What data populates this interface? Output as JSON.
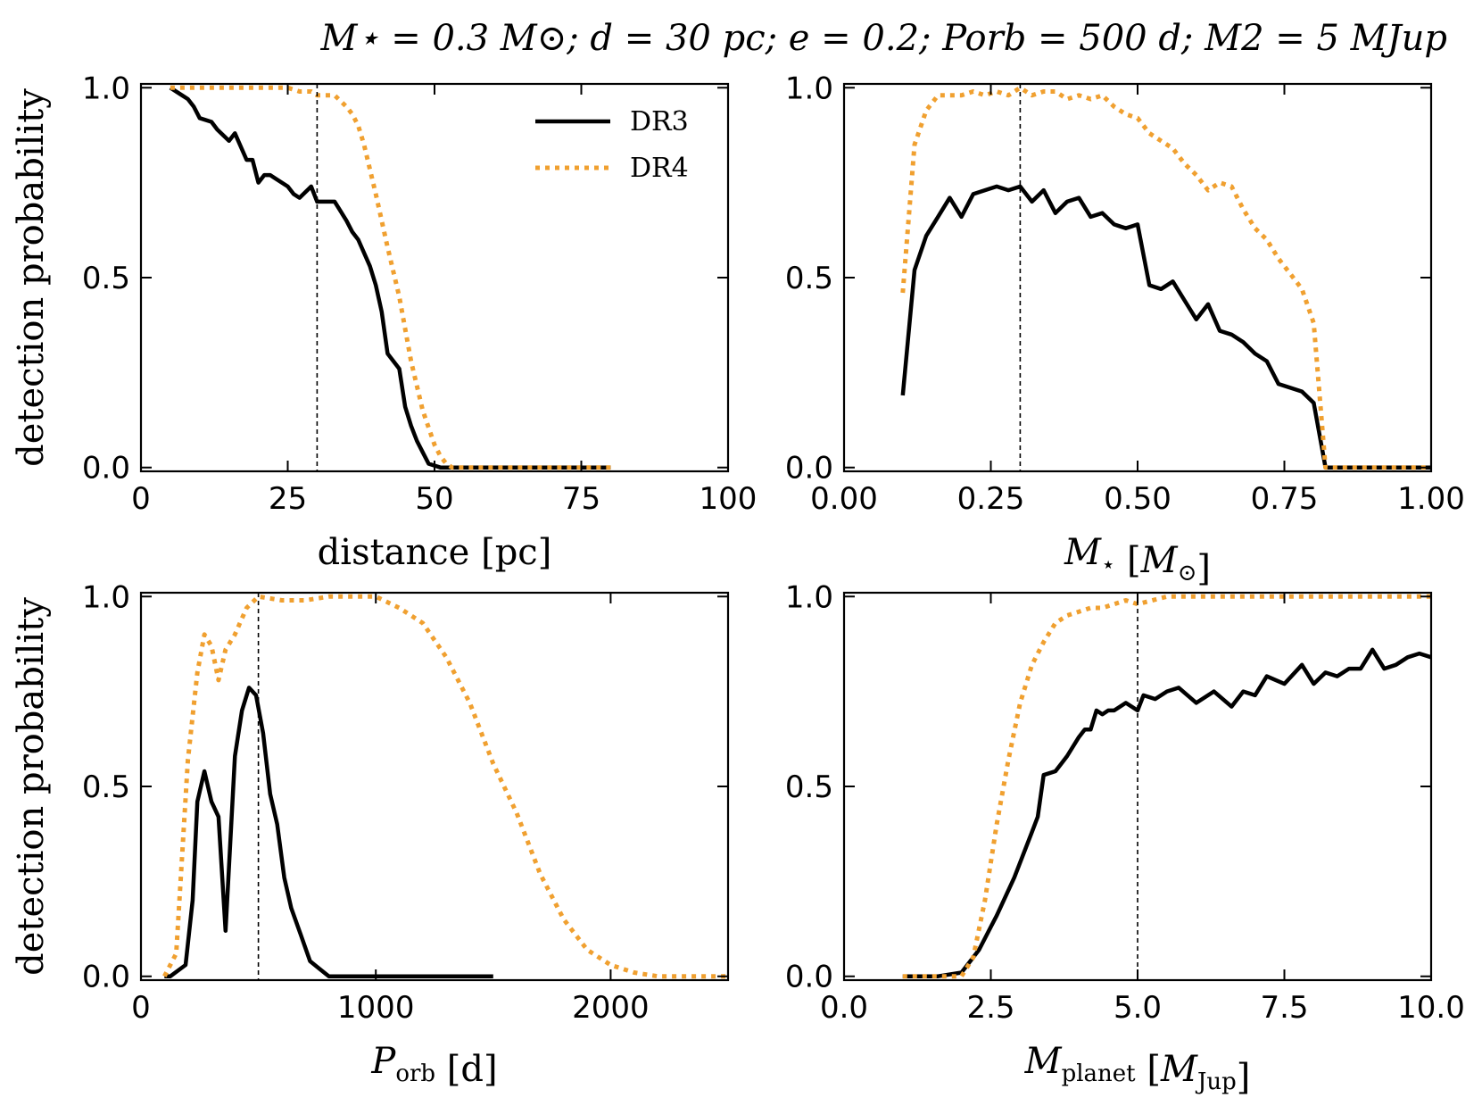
{
  "figure": {
    "title": "M⋆ = 0.3 M⊙;  d = 30 pc;  e = 0.2;  Porb = 500 d;  M2 = 5 MJup",
    "colors": {
      "DR3": "#000000",
      "DR4": "#f0a030",
      "frame": "#000000"
    },
    "legend": {
      "entries": [
        {
          "name": "DR3",
          "style": "solid"
        },
        {
          "name": "DR4",
          "style": "dotted"
        }
      ],
      "placement": "upper-right of top-left panel"
    }
  },
  "chart_data": [
    {
      "type": "line",
      "xlabel": "distance [pc]",
      "ylabel": "detection probability",
      "xlim": [
        0,
        100
      ],
      "ylim": [
        -0.01,
        1.01
      ],
      "xticks": [
        0,
        25,
        50,
        75,
        100
      ],
      "xtick_labels": [
        "0",
        "25",
        "50",
        "75",
        "100"
      ],
      "yticks": [
        0.0,
        0.5,
        1.0
      ],
      "ytick_labels": [
        "0.0",
        "0.5",
        "1.0"
      ],
      "vline": 30,
      "series": [
        {
          "name": "DR3",
          "x": [
            5,
            7,
            8,
            9,
            10,
            12,
            13,
            15,
            16,
            18,
            19,
            20,
            21,
            22,
            23,
            25,
            26,
            27,
            29,
            30,
            31,
            32,
            33,
            35,
            36,
            37,
            39,
            40,
            41,
            42,
            44,
            45,
            46,
            47,
            48,
            49,
            51,
            52,
            53,
            54,
            55,
            57,
            58,
            60,
            65,
            70,
            75,
            80
          ],
          "y": [
            1.0,
            0.98,
            0.97,
            0.95,
            0.92,
            0.91,
            0.89,
            0.86,
            0.88,
            0.81,
            0.81,
            0.75,
            0.77,
            0.77,
            0.76,
            0.74,
            0.72,
            0.71,
            0.74,
            0.7,
            0.7,
            0.7,
            0.7,
            0.65,
            0.62,
            0.6,
            0.53,
            0.48,
            0.41,
            0.3,
            0.26,
            0.16,
            0.11,
            0.07,
            0.04,
            0.01,
            0.0,
            0.0,
            0.0,
            0.0,
            0.0,
            0.0,
            0.0,
            0.0,
            0.0,
            0.0,
            0.0,
            0.0
          ]
        },
        {
          "name": "DR4",
          "x": [
            5,
            10,
            15,
            20,
            25,
            27,
            29,
            30,
            31,
            32,
            33,
            35,
            36,
            37,
            38,
            40,
            42,
            44,
            46,
            48,
            50,
            51,
            52,
            53,
            54,
            55,
            57,
            58,
            60,
            65,
            70,
            75,
            80
          ],
          "y": [
            1.0,
            1.0,
            1.0,
            1.0,
            1.0,
            0.99,
            0.99,
            0.98,
            0.98,
            0.98,
            0.98,
            0.95,
            0.93,
            0.9,
            0.85,
            0.72,
            0.58,
            0.45,
            0.28,
            0.15,
            0.06,
            0.03,
            0.01,
            0.0,
            0.0,
            0.0,
            0.0,
            0.0,
            0.0,
            0.0,
            0.0,
            0.0,
            0.0
          ]
        }
      ]
    },
    {
      "type": "line",
      "xlabel": "M⋆ [M⊙]",
      "ylabel": "",
      "xlim": [
        0,
        1
      ],
      "ylim": [
        -0.01,
        1.01
      ],
      "xticks": [
        0,
        0.25,
        0.5,
        0.75,
        1.0
      ],
      "xtick_labels": [
        "0.00",
        "0.25",
        "0.50",
        "0.75",
        "1.00"
      ],
      "yticks": [
        0.0,
        0.5,
        1.0
      ],
      "ytick_labels": [
        "0.0",
        "0.5",
        "1.0"
      ],
      "vline": 0.3,
      "series": [
        {
          "name": "DR3",
          "x": [
            0.1,
            0.12,
            0.14,
            0.16,
            0.18,
            0.2,
            0.22,
            0.24,
            0.26,
            0.28,
            0.3,
            0.32,
            0.34,
            0.36,
            0.38,
            0.4,
            0.42,
            0.44,
            0.46,
            0.48,
            0.5,
            0.52,
            0.54,
            0.56,
            0.58,
            0.6,
            0.62,
            0.64,
            0.66,
            0.68,
            0.7,
            0.72,
            0.74,
            0.76,
            0.78,
            0.8,
            0.82,
            0.84,
            0.9,
            1.0
          ],
          "y": [
            0.19,
            0.52,
            0.61,
            0.66,
            0.71,
            0.66,
            0.72,
            0.73,
            0.74,
            0.73,
            0.74,
            0.7,
            0.73,
            0.67,
            0.7,
            0.71,
            0.66,
            0.67,
            0.64,
            0.63,
            0.64,
            0.48,
            0.47,
            0.49,
            0.44,
            0.39,
            0.43,
            0.36,
            0.35,
            0.33,
            0.3,
            0.28,
            0.22,
            0.21,
            0.2,
            0.17,
            0.0,
            0.0,
            0.0,
            0.0
          ]
        },
        {
          "name": "DR4",
          "x": [
            0.1,
            0.12,
            0.14,
            0.16,
            0.18,
            0.2,
            0.22,
            0.24,
            0.26,
            0.28,
            0.3,
            0.32,
            0.34,
            0.36,
            0.38,
            0.4,
            0.42,
            0.44,
            0.46,
            0.48,
            0.5,
            0.52,
            0.54,
            0.56,
            0.58,
            0.6,
            0.62,
            0.64,
            0.66,
            0.68,
            0.7,
            0.72,
            0.74,
            0.76,
            0.78,
            0.8,
            0.82,
            0.84,
            0.9,
            1.0
          ],
          "y": [
            0.46,
            0.85,
            0.94,
            0.98,
            0.98,
            0.98,
            0.99,
            0.98,
            0.99,
            0.98,
            1.0,
            0.98,
            0.99,
            0.99,
            0.97,
            0.98,
            0.97,
            0.98,
            0.95,
            0.93,
            0.92,
            0.88,
            0.86,
            0.84,
            0.8,
            0.77,
            0.73,
            0.75,
            0.74,
            0.68,
            0.63,
            0.6,
            0.55,
            0.51,
            0.47,
            0.38,
            0.0,
            0.0,
            0.0,
            0.0
          ]
        }
      ]
    },
    {
      "type": "line",
      "xlabel": "Porb [d]",
      "ylabel": "detection probability",
      "xlim": [
        0,
        2500
      ],
      "ylim": [
        -0.01,
        1.01
      ],
      "xticks": [
        0,
        1000,
        2000
      ],
      "xtick_labels": [
        "0",
        "1000",
        "2000"
      ],
      "yticks": [
        0.0,
        0.5,
        1.0
      ],
      "ytick_labels": [
        "0.0",
        "0.5",
        "1.0"
      ],
      "vline": 500,
      "series": [
        {
          "name": "DR3",
          "x": [
            100,
            125,
            190,
            220,
            240,
            270,
            300,
            330,
            360,
            400,
            430,
            460,
            490,
            520,
            550,
            580,
            610,
            640,
            680,
            720,
            760,
            800,
            850,
            900,
            1000,
            1100,
            1200,
            1300,
            1400,
            1500
          ],
          "y": [
            0.0,
            0.0,
            0.03,
            0.2,
            0.46,
            0.54,
            0.46,
            0.42,
            0.12,
            0.58,
            0.7,
            0.76,
            0.74,
            0.64,
            0.48,
            0.4,
            0.26,
            0.18,
            0.11,
            0.04,
            0.02,
            0.0,
            0.0,
            0.0,
            0.0,
            0.0,
            0.0,
            0.0,
            0.0,
            0.0
          ]
        },
        {
          "name": "DR4",
          "x": [
            100,
            150,
            200,
            240,
            270,
            300,
            330,
            360,
            400,
            450,
            500,
            600,
            700,
            800,
            900,
            1000,
            1100,
            1200,
            1300,
            1400,
            1500,
            1600,
            1700,
            1800,
            1900,
            2000,
            2100,
            2200,
            2300,
            2400,
            2500
          ],
          "y": [
            0.0,
            0.06,
            0.57,
            0.8,
            0.9,
            0.87,
            0.78,
            0.86,
            0.9,
            0.97,
            1.0,
            0.99,
            0.99,
            1.0,
            1.0,
            1.0,
            0.97,
            0.93,
            0.84,
            0.72,
            0.56,
            0.43,
            0.27,
            0.15,
            0.07,
            0.03,
            0.01,
            0.0,
            0.0,
            0.0,
            0.0
          ]
        }
      ]
    },
    {
      "type": "line",
      "xlabel": "Mplanet [MJup]",
      "ylabel": "",
      "xlim": [
        0,
        10
      ],
      "ylim": [
        -0.01,
        1.01
      ],
      "xticks": [
        0,
        2.5,
        5,
        7.5,
        10
      ],
      "xtick_labels": [
        "0.0",
        "2.5",
        "5.0",
        "7.5",
        "10.0"
      ],
      "yticks": [
        0.0,
        0.5,
        1.0
      ],
      "ytick_labels": [
        "0.0",
        "0.5",
        "1.0"
      ],
      "vline": 5,
      "series": [
        {
          "name": "DR3",
          "x": [
            1.0,
            1.3,
            1.6,
            2.0,
            2.1,
            2.3,
            2.5,
            2.6,
            2.9,
            3.0,
            3.2,
            3.3,
            3.4,
            3.6,
            3.7,
            3.8,
            4.0,
            4.1,
            4.2,
            4.3,
            4.4,
            4.5,
            4.6,
            4.7,
            4.8,
            5.0,
            5.1,
            5.3,
            5.5,
            5.7,
            6.0,
            6.3,
            6.6,
            6.8,
            7.0,
            7.2,
            7.5,
            7.8,
            8.0,
            8.2,
            8.4,
            8.6,
            8.8,
            9.0,
            9.2,
            9.4,
            9.6,
            9.8,
            10.0
          ],
          "y": [
            0.0,
            0.0,
            0.0,
            0.01,
            0.03,
            0.07,
            0.13,
            0.16,
            0.26,
            0.3,
            0.38,
            0.42,
            0.53,
            0.54,
            0.56,
            0.58,
            0.63,
            0.65,
            0.65,
            0.7,
            0.69,
            0.7,
            0.7,
            0.71,
            0.72,
            0.7,
            0.74,
            0.73,
            0.75,
            0.76,
            0.72,
            0.75,
            0.71,
            0.75,
            0.74,
            0.79,
            0.77,
            0.82,
            0.77,
            0.8,
            0.79,
            0.81,
            0.81,
            0.86,
            0.81,
            0.82,
            0.84,
            0.85,
            0.84
          ]
        },
        {
          "name": "DR4",
          "x": [
            1.0,
            1.5,
            2.0,
            2.2,
            2.4,
            2.6,
            2.8,
            3.0,
            3.2,
            3.4,
            3.6,
            3.8,
            4.0,
            4.2,
            4.4,
            4.6,
            4.8,
            5.0,
            5.5,
            6.0,
            7.0,
            8.0,
            9.0,
            10.0
          ],
          "y": [
            0.0,
            0.0,
            0.0,
            0.05,
            0.2,
            0.4,
            0.57,
            0.72,
            0.82,
            0.88,
            0.93,
            0.95,
            0.96,
            0.97,
            0.97,
            0.98,
            0.99,
            0.98,
            1.0,
            1.0,
            1.0,
            1.0,
            1.0,
            1.0
          ]
        }
      ]
    }
  ]
}
